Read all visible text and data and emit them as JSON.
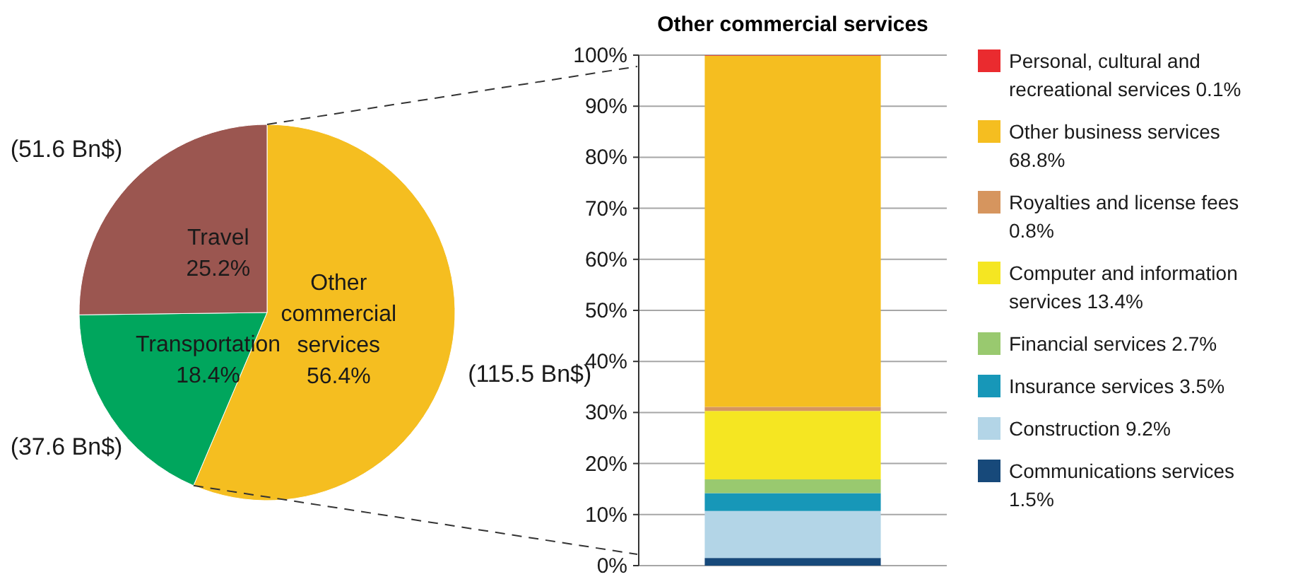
{
  "chart_data": [
    {
      "type": "pie",
      "categories": [
        "Other commercial services",
        "Transportation",
        "Travel"
      ],
      "values": [
        56.4,
        18.4,
        25.2
      ],
      "colors": [
        "#f5be20",
        "#00a65d",
        "#9b5650"
      ],
      "value_labels": [
        "56.4%",
        "18.4%",
        "25.2%"
      ],
      "annotations": [
        "(115.5 Bn$)",
        "(37.6 Bn$)",
        "(51.6 Bn$)"
      ]
    },
    {
      "type": "bar",
      "stacked": true,
      "title": "Other commercial services",
      "categories": [
        null
      ],
      "series": [
        {
          "name": "Communications services 1.5%",
          "color": "#17497a",
          "values": [
            1.5
          ]
        },
        {
          "name": "Construction 9.2%",
          "color": "#b3d5e7",
          "values": [
            9.2
          ]
        },
        {
          "name": "Insurance services 3.5%",
          "color": "#1797b8",
          "values": [
            3.5
          ]
        },
        {
          "name": "Financial services 2.7%",
          "color": "#99c96f",
          "values": [
            2.7
          ]
        },
        {
          "name": "Computer and information services 13.4%",
          "color": "#f5e622",
          "values": [
            13.4
          ]
        },
        {
          "name": "Royalties and license fees 0.8%",
          "color": "#d6955e",
          "values": [
            0.8
          ]
        },
        {
          "name": "Other business services 68.8%",
          "color": "#f5be20",
          "values": [
            68.8
          ]
        },
        {
          "name": "Personal, cultural and recreational services 0.1%",
          "color": "#ea2b2f",
          "values": [
            0.1
          ]
        }
      ],
      "ylim": [
        0,
        100
      ],
      "yticks": [
        {
          "value": 0,
          "label": "0%"
        },
        {
          "value": 10,
          "label": "10%"
        },
        {
          "value": 20,
          "label": "20%"
        },
        {
          "value": 30,
          "label": "30%"
        },
        {
          "value": 40,
          "label": "40%"
        },
        {
          "value": 50,
          "label": "50%"
        },
        {
          "value": 60,
          "label": "60%"
        },
        {
          "value": 70,
          "label": "70%"
        },
        {
          "value": 80,
          "label": "80%"
        },
        {
          "value": 90,
          "label": "90%"
        },
        {
          "value": 100,
          "label": "100%"
        }
      ],
      "grid": "y",
      "legend": "right"
    }
  ]
}
